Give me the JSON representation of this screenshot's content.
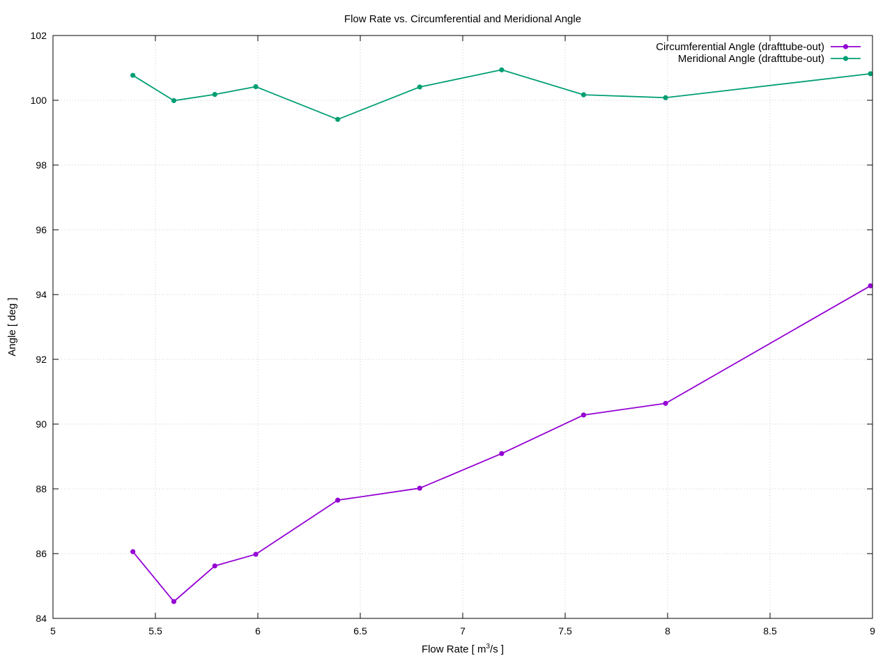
{
  "chart_data": {
    "type": "line",
    "title": "Flow Rate vs. Circumferential and Meridional Angle",
    "xlabel": {
      "prefix": "Flow Rate [ m",
      "superscript": "3",
      "suffix": "/s ]"
    },
    "ylabel": "Angle [ deg ]",
    "xlim": [
      5,
      9
    ],
    "ylim": [
      84,
      102
    ],
    "grid": true,
    "legend_position": "top-right",
    "x_ticks": [
      "5",
      "5.5",
      "6",
      "6.5",
      "7",
      "7.5",
      "8",
      "8.5",
      "9"
    ],
    "y_ticks": [
      "84",
      "86",
      "88",
      "90",
      "92",
      "94",
      "96",
      "98",
      "100",
      "102"
    ],
    "x": [
      5.39,
      5.59,
      5.79,
      5.99,
      6.39,
      6.79,
      7.19,
      7.59,
      7.99,
      8.99
    ],
    "series": [
      {
        "name": "Circumferential Angle (drafttube-out)",
        "color": "#9400d3",
        "values": [
          86.06,
          84.52,
          85.62,
          85.98,
          87.65,
          88.02,
          89.09,
          90.28,
          90.64,
          94.27
        ]
      },
      {
        "name": "Meridional Angle (drafttube-out)",
        "color": "#009e73",
        "values": [
          100.77,
          99.99,
          100.18,
          100.42,
          99.41,
          100.41,
          100.94,
          100.17,
          100.08,
          100.82
        ]
      }
    ]
  }
}
